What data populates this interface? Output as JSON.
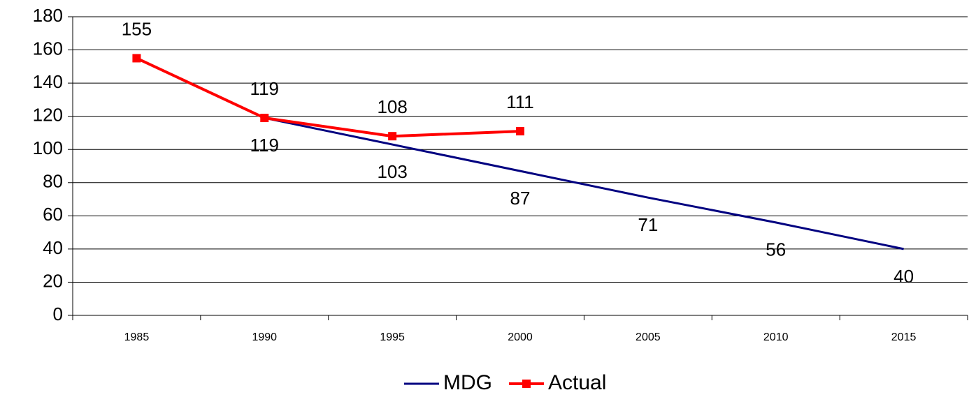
{
  "chart_data": {
    "type": "line",
    "categories": [
      "1985",
      "1990",
      "1995",
      "2000",
      "2005",
      "2010",
      "2015"
    ],
    "series": [
      {
        "name": "MDG",
        "color": "#000080",
        "values": [
          null,
          119,
          103,
          87,
          71,
          56,
          40
        ]
      },
      {
        "name": "Actual",
        "color": "#ff0000",
        "values": [
          155,
          119,
          108,
          111,
          null,
          null,
          null
        ]
      }
    ],
    "ylim": [
      0,
      180
    ],
    "yticks": [
      0,
      20,
      40,
      60,
      80,
      100,
      120,
      140,
      160,
      180
    ],
    "grid": true,
    "legend": "bottom"
  }
}
